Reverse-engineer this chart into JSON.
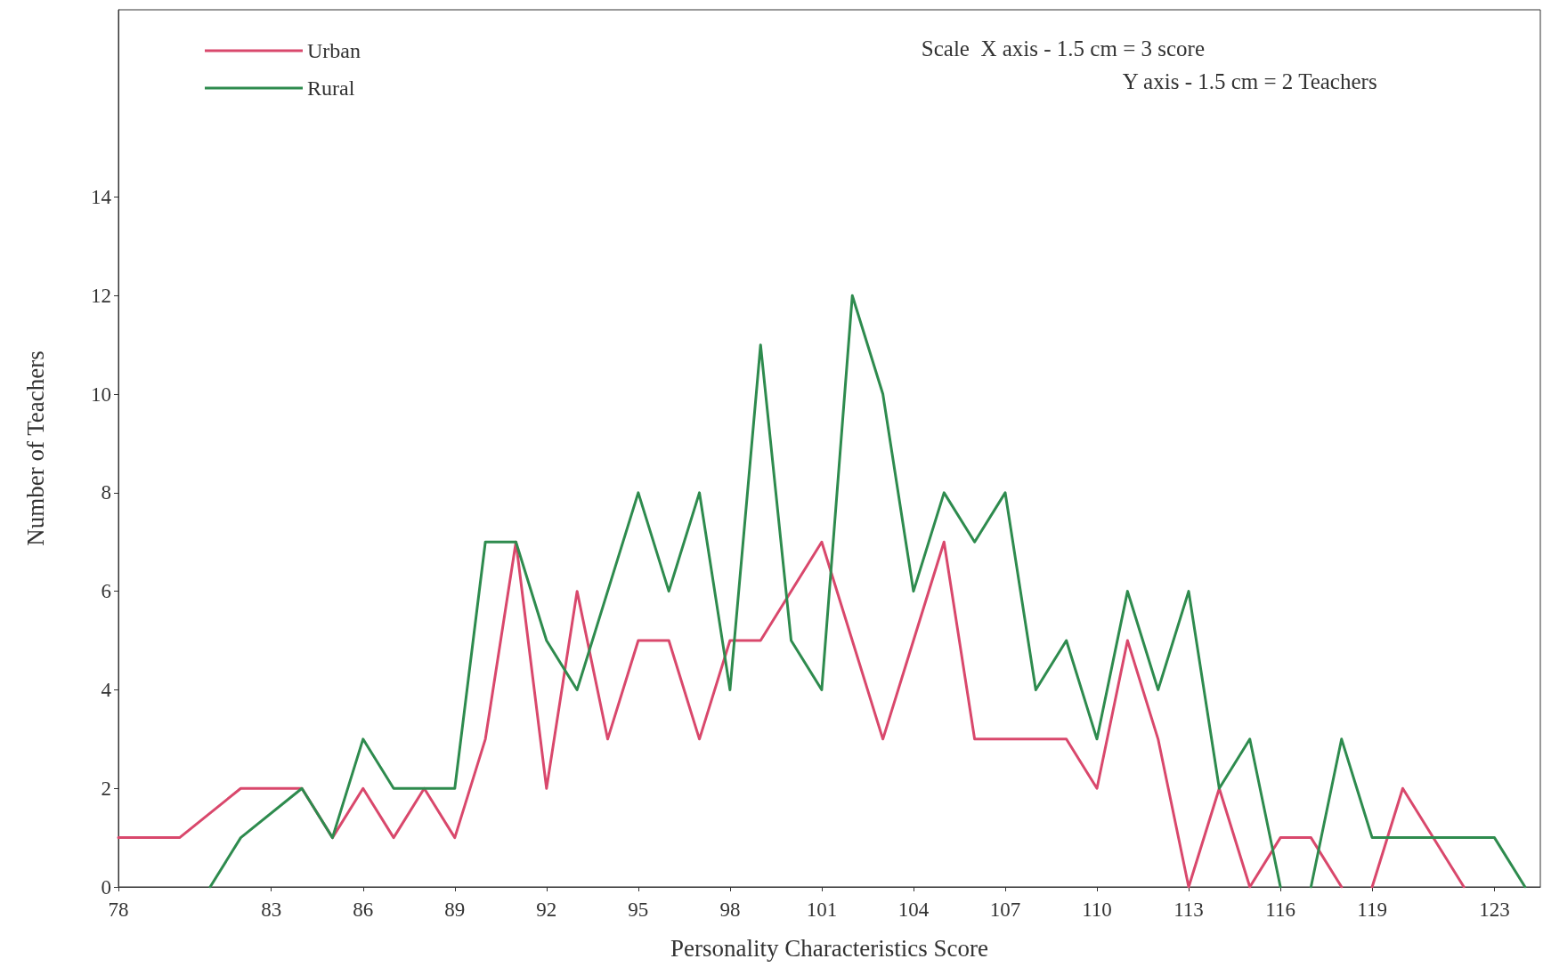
{
  "chart_data": {
    "type": "line",
    "xlabel": "Personality Characteristics Score",
    "ylabel": "Number of Teachers",
    "annotations": [
      "Scale  X axis - 1.5 cm = 3 score",
      "Y axis - 1.5 cm = 2 Teachers"
    ],
    "series": [
      {
        "name": "Urban",
        "color": "#d9486c",
        "x": [
          78,
          80,
          82,
          84,
          85,
          86,
          87,
          88,
          89,
          90,
          91,
          92,
          93,
          94,
          95,
          96,
          97,
          98,
          99,
          101,
          103,
          105,
          106,
          109,
          110,
          111,
          112,
          113,
          114,
          115,
          116,
          117,
          118,
          118.5,
          119,
          120,
          122
        ],
        "values": [
          1,
          1,
          2,
          2,
          1,
          2,
          1,
          2,
          1,
          3,
          7,
          2,
          6,
          3,
          5,
          5,
          3,
          5,
          5,
          7,
          3,
          7,
          3,
          3,
          2,
          5,
          3,
          0,
          2,
          0,
          1,
          1,
          0,
          null,
          0,
          2,
          0
        ]
      },
      {
        "name": "Rural",
        "color": "#2e8b4e",
        "x": [
          81,
          82,
          84,
          85,
          86,
          87,
          88,
          89,
          90,
          91,
          92,
          93,
          94,
          95,
          96,
          97,
          98,
          99,
          100,
          101,
          102,
          103,
          104,
          105,
          106,
          107,
          108,
          109,
          110,
          111,
          112,
          113,
          114,
          115,
          116,
          116.5,
          117,
          118,
          119,
          123,
          124
        ],
        "values": [
          0,
          1,
          2,
          1,
          3,
          2,
          2,
          2,
          7,
          7,
          5,
          4,
          6,
          8,
          6,
          8,
          4,
          11,
          5,
          4,
          12,
          10,
          6,
          8,
          7,
          8,
          4,
          5,
          3,
          6,
          4,
          6,
          2,
          3,
          0,
          null,
          0,
          3,
          1,
          1,
          0
        ]
      }
    ],
    "xlim": [
      78,
      124.5
    ],
    "xticks": [
      78,
      83,
      86,
      89,
      92,
      95,
      98,
      101,
      104,
      107,
      110,
      113,
      116,
      119,
      123
    ],
    "ylim": [
      0,
      17.8
    ],
    "yticks": [
      0,
      2,
      4,
      6,
      8,
      10,
      12,
      14
    ],
    "grid": false,
    "legend": "top left",
    "marker": "none",
    "line_style": "solid"
  }
}
